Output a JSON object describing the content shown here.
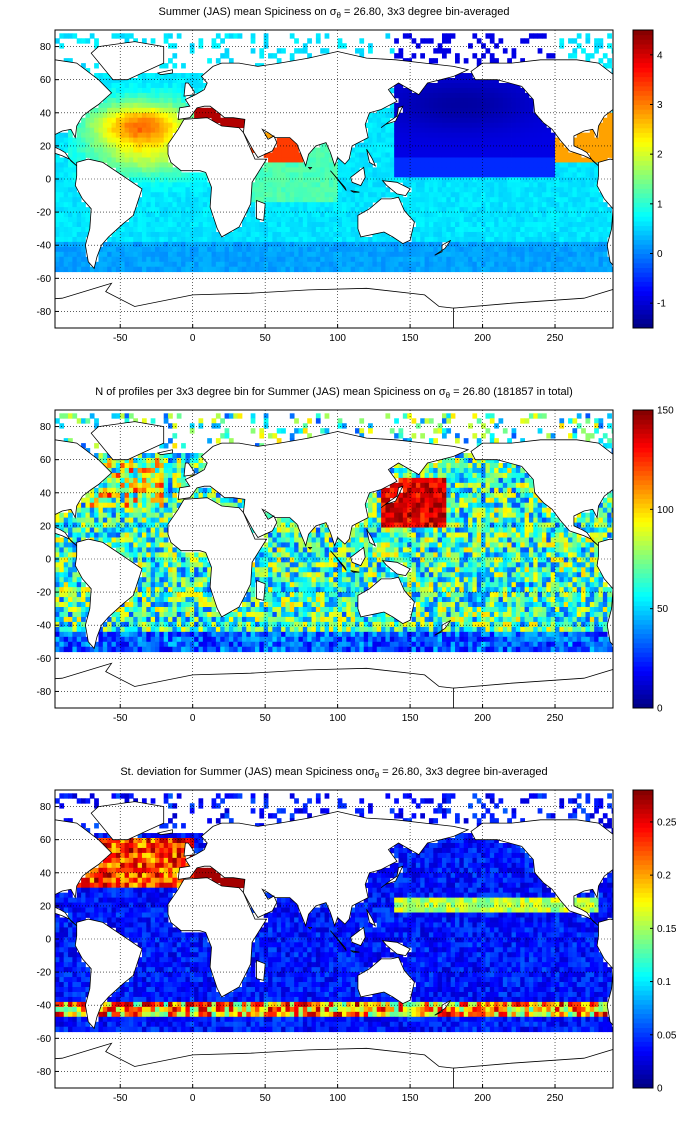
{
  "chart_data": [
    {
      "type": "heatmap",
      "title_parts": [
        "Summer (JAS) mean Spiciness on ",
        "σ",
        "θ",
        " = 26.80, 3x3 degree bin-averaged"
      ],
      "xlabel": "",
      "ylabel": "",
      "xlim": [
        -95,
        290
      ],
      "ylim": [
        -90,
        90
      ],
      "xticks": [
        -50,
        0,
        50,
        100,
        150,
        200,
        250
      ],
      "yticks": [
        80,
        60,
        40,
        20,
        0,
        -20,
        -40,
        -60,
        -80
      ],
      "grid": "dotted",
      "colorbar": {
        "min": -1.5,
        "max": 4.5,
        "ticks": [
          4,
          3,
          2,
          1,
          0,
          -1
        ],
        "colormap": "jet"
      },
      "field": "mean_spiciness"
    },
    {
      "type": "heatmap",
      "title_parts": [
        "N of profiles per 3x3 degree bin for Summer (JAS) mean Spiciness on ",
        "σ",
        "θ",
        " = 26.80 (181857 in total)"
      ],
      "xlabel": "",
      "ylabel": "",
      "xlim": [
        -95,
        290
      ],
      "ylim": [
        -90,
        90
      ],
      "xticks": [
        -50,
        0,
        50,
        100,
        150,
        200,
        250
      ],
      "yticks": [
        80,
        60,
        40,
        20,
        0,
        -20,
        -40,
        -60,
        -80
      ],
      "grid": "dotted",
      "colorbar": {
        "min": 0,
        "max": 150,
        "ticks": [
          150,
          100,
          50,
          0
        ],
        "colormap": "jet"
      },
      "field": "profile_count"
    },
    {
      "type": "heatmap",
      "title_parts": [
        "St. deviation for Summer (JAS) mean Spiciness on",
        "σ",
        "θ",
        " = 26.80, 3x3 degree bin-averaged"
      ],
      "xlabel": "",
      "ylabel": "",
      "xlim": [
        -95,
        290
      ],
      "ylim": [
        -90,
        90
      ],
      "xticks": [
        -50,
        0,
        50,
        100,
        150,
        200,
        250
      ],
      "yticks": [
        80,
        60,
        40,
        20,
        0,
        -20,
        -40,
        -60,
        -80
      ],
      "grid": "dotted",
      "colorbar": {
        "min": 0,
        "max": 0.28,
        "ticks": [
          0.25,
          0.2,
          0.15,
          0.1,
          0.05,
          0
        ],
        "colormap": "jet"
      },
      "field": "std_spiciness"
    }
  ]
}
